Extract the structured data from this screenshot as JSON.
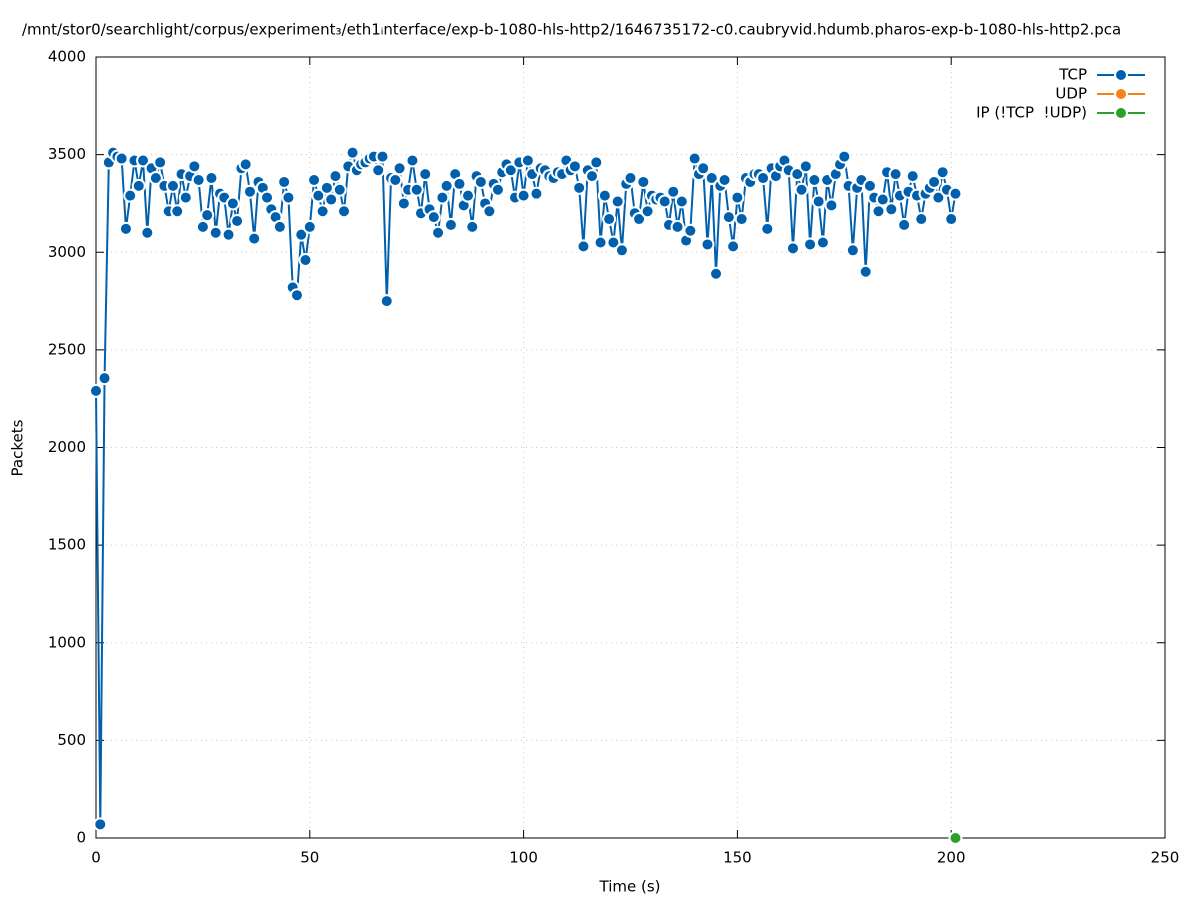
{
  "chart_data": {
    "type": "line",
    "title": "/mnt/stor0/searchlight/corpus/experiment₃/eth1ᵢnterface/exp-b-1080-hls-http2/1646735172-c0.caubryvid.hdumb.pharos-exp-b-1080-hls-http2.pca",
    "x_label": "Time (s)",
    "y_label": "Packets",
    "xlim": [
      0,
      250
    ],
    "xticks": [
      0,
      50,
      100,
      150,
      200,
      250
    ],
    "ylim": [
      0,
      4000
    ],
    "yticks": [
      0,
      500,
      1000,
      1500,
      2000,
      2500,
      3000,
      3500,
      4000
    ],
    "grid": true,
    "legend": "top-right",
    "series": [
      {
        "name": "TCP",
        "color": "#0060ad",
        "x": [
          0,
          1,
          2,
          3,
          4,
          5,
          6,
          7,
          8,
          9,
          10,
          11,
          12,
          13,
          14,
          15,
          16,
          17,
          18,
          19,
          20,
          21,
          22,
          23,
          24,
          25,
          26,
          27,
          28,
          29,
          30,
          31,
          32,
          33,
          34,
          35,
          36,
          37,
          38,
          39,
          40,
          41,
          42,
          43,
          44,
          45,
          46,
          47,
          48,
          49,
          50,
          51,
          52,
          53,
          54,
          55,
          56,
          57,
          58,
          59,
          60,
          61,
          62,
          63,
          64,
          65,
          66,
          67,
          68,
          69,
          70,
          71,
          72,
          73,
          74,
          75,
          76,
          77,
          78,
          79,
          80,
          81,
          82,
          83,
          84,
          85,
          86,
          87,
          88,
          89,
          90,
          91,
          92,
          93,
          94,
          95,
          96,
          97,
          98,
          99,
          100,
          101,
          102,
          103,
          104,
          105,
          106,
          107,
          108,
          109,
          110,
          111,
          112,
          113,
          114,
          115,
          116,
          117,
          118,
          119,
          120,
          121,
          122,
          123,
          124,
          125,
          126,
          127,
          128,
          129,
          130,
          131,
          132,
          133,
          134,
          135,
          136,
          137,
          138,
          139,
          140,
          141,
          142,
          143,
          144,
          145,
          146,
          147,
          148,
          149,
          150,
          151,
          152,
          153,
          154,
          155,
          156,
          157,
          158,
          159,
          160,
          161,
          162,
          163,
          164,
          165,
          166,
          167,
          168,
          169,
          170,
          171,
          172,
          173,
          174,
          175,
          176,
          177,
          178,
          179,
          180,
          181,
          182,
          183,
          184,
          185,
          186,
          187,
          188,
          189,
          190,
          191,
          192,
          193,
          194,
          195,
          196,
          197,
          198,
          199,
          200,
          201
        ],
        "values": [
          2290,
          70,
          2355,
          3460,
          3510,
          3490,
          3480,
          3120,
          3290,
          3470,
          3340,
          3470,
          3100,
          3430,
          3380,
          3460,
          3340,
          3210,
          3340,
          3210,
          3400,
          3280,
          3390,
          3440,
          3370,
          3130,
          3190,
          3380,
          3100,
          3300,
          3280,
          3090,
          3250,
          3160,
          3430,
          3450,
          3310,
          3070,
          3360,
          3330,
          3280,
          3220,
          3180,
          3130,
          3360,
          3280,
          2820,
          2780,
          3090,
          2960,
          3130,
          3370,
          3290,
          3210,
          3330,
          3270,
          3390,
          3320,
          3210,
          3440,
          3510,
          3420,
          3450,
          3460,
          3480,
          3490,
          3420,
          3490,
          2750,
          3380,
          3370,
          3430,
          3250,
          3320,
          3470,
          3320,
          3200,
          3400,
          3220,
          3180,
          3100,
          3280,
          3340,
          3140,
          3400,
          3350,
          3240,
          3290,
          3130,
          3390,
          3360,
          3250,
          3210,
          3350,
          3320,
          3410,
          3450,
          3420,
          3280,
          3460,
          3290,
          3470,
          3400,
          3300,
          3430,
          3420,
          3390,
          3380,
          3410,
          3400,
          3470,
          3420,
          3440,
          3330,
          3030,
          3420,
          3390,
          3460,
          3050,
          3290,
          3170,
          3050,
          3260,
          3010,
          3350,
          3380,
          3200,
          3170,
          3360,
          3210,
          3290,
          3270,
          3280,
          3260,
          3140,
          3310,
          3130,
          3260,
          3060,
          3110,
          3480,
          3400,
          3430,
          3040,
          3380,
          2890,
          3340,
          3370,
          3180,
          3030,
          3280,
          3170,
          3380,
          3360,
          3400,
          3400,
          3380,
          3120,
          3430,
          3390,
          3440,
          3470,
          3420,
          3020,
          3400,
          3320,
          3440,
          3040,
          3370,
          3260,
          3050,
          3370,
          3240,
          3400,
          3450,
          3490,
          3340,
          3010,
          3330,
          3370,
          2900,
          3340,
          3280,
          3210,
          3270,
          3410,
          3220,
          3400,
          3290,
          3140,
          3310,
          3390,
          3290,
          3170,
          3300,
          3330,
          3360,
          3280,
          3410,
          3320,
          3170,
          3300
        ]
      },
      {
        "name": "UDP",
        "color": "#f28518",
        "x": [],
        "values": []
      },
      {
        "name": "IP (!TCP  !UDP)",
        "color": "#2ca02c",
        "x": [
          201
        ],
        "values": [
          0
        ]
      }
    ]
  }
}
